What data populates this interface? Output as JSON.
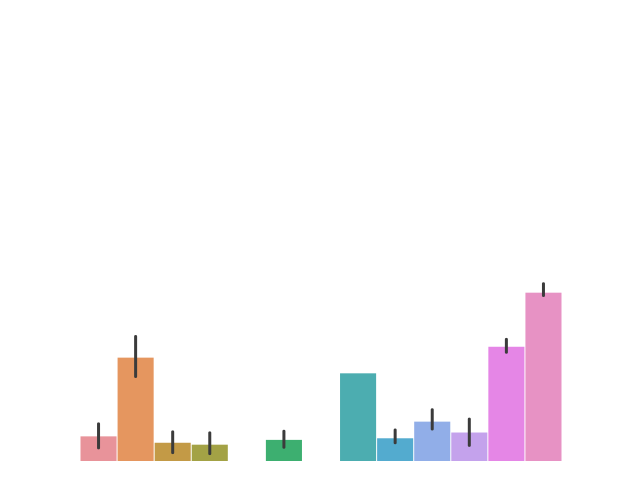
{
  "chart_data": {
    "type": "bar",
    "axes_visible": false,
    "grid": false,
    "legend": "none",
    "ylim": [
      0,
      100
    ],
    "slots": 13,
    "bars": [
      {
        "slot": 0,
        "value": 7.7,
        "err_low": 4.1,
        "err_high": 11.6,
        "color": "#e8939a"
      },
      {
        "slot": 1,
        "value": 32.3,
        "err_low": 26.4,
        "err_high": 38.9,
        "color": "#e5965f"
      },
      {
        "slot": 2,
        "value": 5.7,
        "err_low": 2.6,
        "err_high": 9.1,
        "color": "#c39a46"
      },
      {
        "slot": 3,
        "value": 5.1,
        "err_low": 2.3,
        "err_high": 8.8,
        "color": "#a3a245"
      },
      {
        "slot": 5,
        "value": 6.6,
        "err_low": 4.3,
        "err_high": 9.3,
        "color": "#3daf70"
      },
      {
        "slot": 7,
        "value": 27.4,
        "err_low": 27.4,
        "err_high": 27.4,
        "color": "#4cadb0"
      },
      {
        "slot": 8,
        "value": 7.1,
        "err_low": 5.7,
        "err_high": 9.7,
        "color": "#53abcf"
      },
      {
        "slot": 9,
        "value": 12.3,
        "err_low": 10.0,
        "err_high": 16.0,
        "color": "#91aee8"
      },
      {
        "slot": 10,
        "value": 8.9,
        "err_low": 4.9,
        "err_high": 13.1,
        "color": "#c4a2ec"
      },
      {
        "slot": 11,
        "value": 35.7,
        "err_low": 34.0,
        "err_high": 38.0,
        "color": "#e586e6"
      },
      {
        "slot": 12,
        "value": 52.6,
        "err_low": 51.7,
        "err_high": 55.4,
        "color": "#e792c4"
      }
    ],
    "errorbar_color": "#3b3b3b"
  }
}
